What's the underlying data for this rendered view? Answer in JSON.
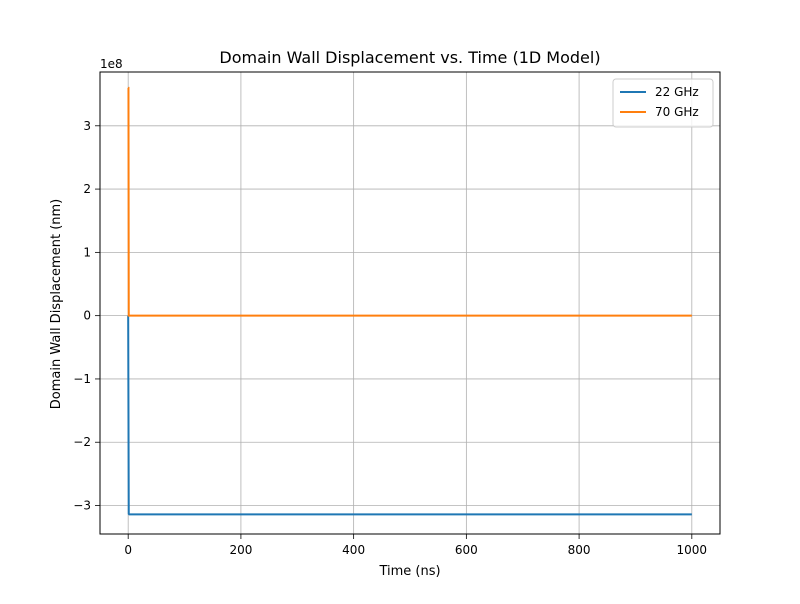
{
  "chart_data": {
    "type": "line",
    "title": "Domain Wall Displacement vs. Time (1D Model)",
    "xlabel": "Time (ns)",
    "ylabel": "Domain Wall Displacement (nm)",
    "y_offset_label": "1e8",
    "xlim": [
      -50,
      1050
    ],
    "ylim": [
      -3.45,
      3.85
    ],
    "y_scale_factor": 100000000,
    "xticks": [
      0,
      200,
      400,
      600,
      800,
      1000
    ],
    "xtick_labels": [
      "0",
      "200",
      "400",
      "600",
      "800",
      "1000"
    ],
    "yticks": [
      -3,
      -2,
      -1,
      0,
      1,
      2,
      3
    ],
    "ytick_labels": [
      "−3",
      "−2",
      "−1",
      "0",
      "1",
      "2",
      "3"
    ],
    "grid": true,
    "legend_position": "top-right",
    "series": [
      {
        "name": "22 GHz",
        "color": "#1f77b4",
        "x": [
          0,
          1,
          2,
          1000
        ],
        "y": [
          0,
          -3.13,
          -3.14,
          -3.14
        ]
      },
      {
        "name": "70 GHz",
        "color": "#ff7f0e",
        "x": [
          0,
          0.5,
          1,
          1000
        ],
        "y": [
          3.6,
          3.6,
          0,
          0
        ]
      }
    ]
  }
}
